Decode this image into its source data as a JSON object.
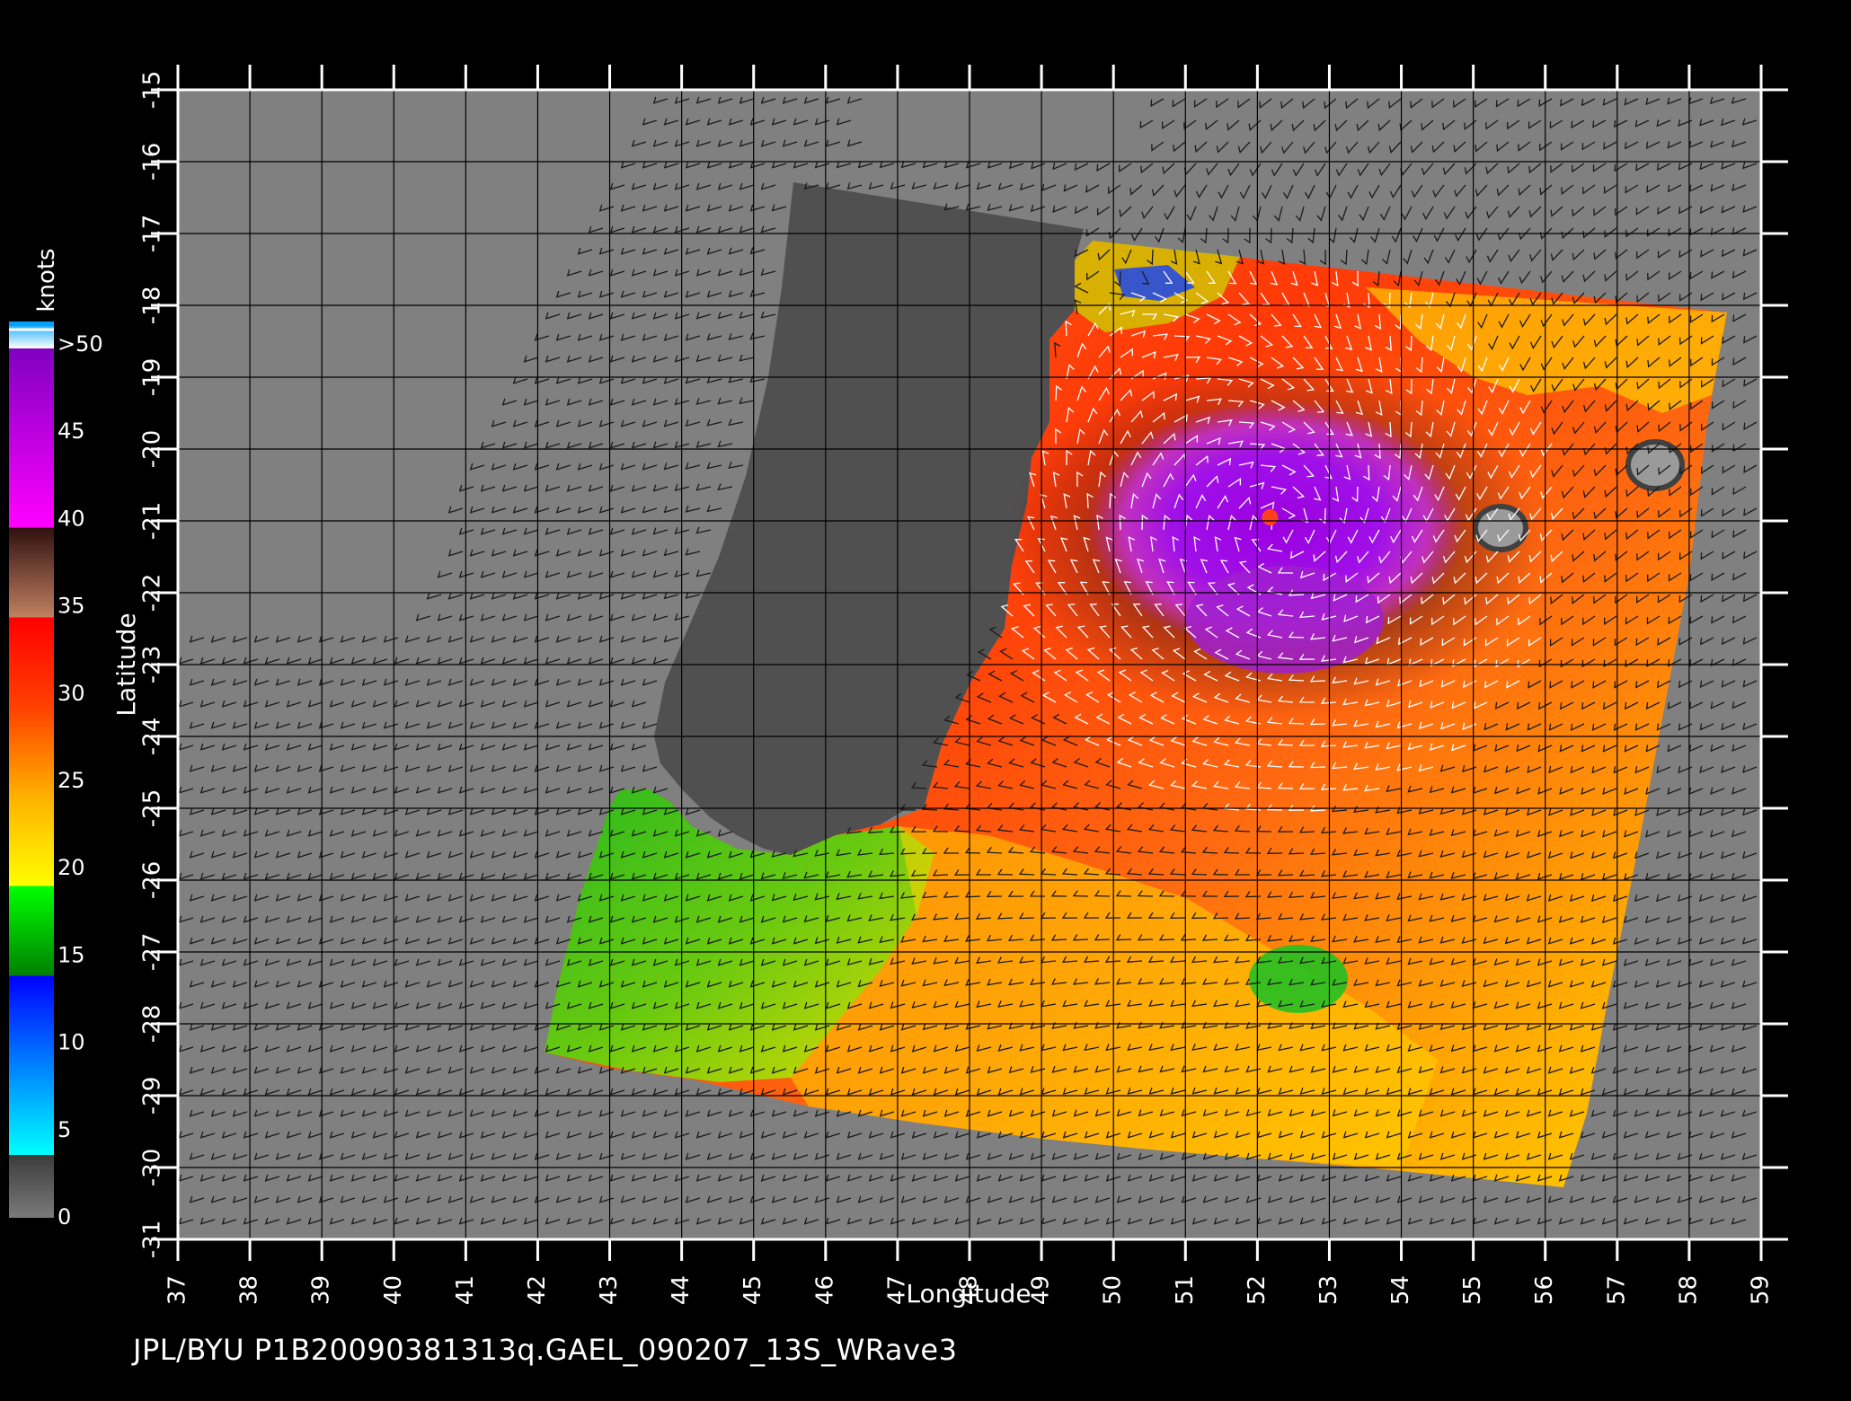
{
  "caption": "JPL/BYU  P1B20090381313q.GAEL_090207_13S_WRave3",
  "axes": {
    "xlabel": "Longitude",
    "ylabel": "Latitude",
    "x_ticks": [
      "37",
      "38",
      "39",
      "40",
      "41",
      "42",
      "43",
      "44",
      "45",
      "46",
      "47",
      "48",
      "49",
      "50",
      "51",
      "52",
      "53",
      "54",
      "55",
      "56",
      "57",
      "58",
      "59"
    ],
    "y_ticks": [
      "-15",
      "-16",
      "-17",
      "-18",
      "-19",
      "-20",
      "-21",
      "-22",
      "-23",
      "-24",
      "-25",
      "-26",
      "-27",
      "-28",
      "-29",
      "-30",
      "-31"
    ],
    "xlim": [
      37,
      59
    ],
    "ylim": [
      -31,
      -15
    ],
    "grid": true
  },
  "colorbar": {
    "unit_label": "knots",
    "tick_labels": [
      ">50",
      "45",
      "40",
      "35",
      "30",
      "25",
      "20",
      "15",
      "10",
      "5",
      "0"
    ],
    "stops": [
      {
        "value": 0,
        "color": "#7a7a7a"
      },
      {
        "value": 4,
        "color": "#3c3c3c"
      },
      {
        "value": 5,
        "color": "#00ffff"
      },
      {
        "value": 10,
        "color": "#0080ff"
      },
      {
        "value": 15,
        "color": "#0000ff"
      },
      {
        "value": 15.1,
        "color": "#008000"
      },
      {
        "value": 20,
        "color": "#00ff00"
      },
      {
        "value": 20.1,
        "color": "#ffff00"
      },
      {
        "value": 25,
        "color": "#ffb000"
      },
      {
        "value": 30,
        "color": "#ff4000"
      },
      {
        "value": 35,
        "color": "#ff0000"
      },
      {
        "value": 35.1,
        "color": "#c08060"
      },
      {
        "value": 40,
        "color": "#301010"
      },
      {
        "value": 40.1,
        "color": "#ff00ff"
      },
      {
        "value": 50,
        "color": "#8000c0"
      }
    ]
  },
  "map": {
    "land_name": "Madagascar",
    "colors": {
      "background": "#808080",
      "land": "#505050",
      "frame": "#000000",
      "barb_dark": "#1a1a1a",
      "barb_light": "#ffffff"
    },
    "storm": {
      "name": "GAEL",
      "center_lon": 52.3,
      "center_lat": -21.1,
      "max_wind": ">50"
    }
  }
}
